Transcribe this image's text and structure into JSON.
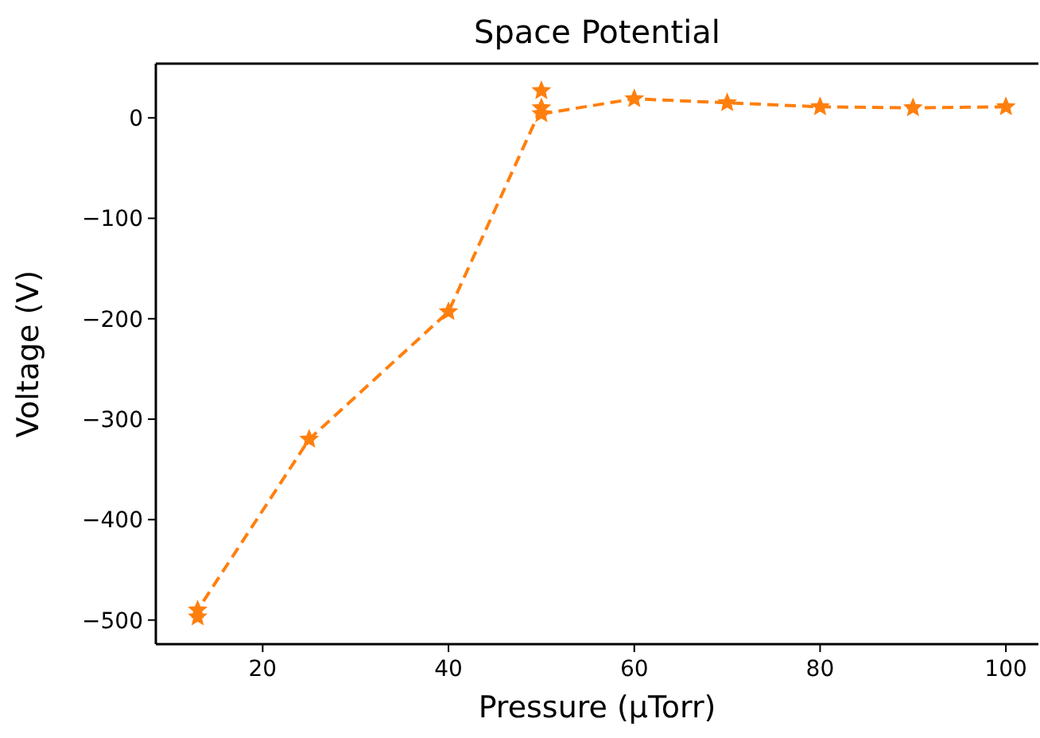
{
  "chart_data": {
    "type": "line",
    "title": "Space Potential",
    "xlabel": "Pressure (μTorr)",
    "ylabel": "Voltage (V)",
    "xlim": [
      8.5,
      103.5
    ],
    "ylim": [
      -524,
      54
    ],
    "xticks": [
      20,
      40,
      60,
      80,
      100
    ],
    "yticks": [
      {
        "value": -500,
        "label": "−500"
      },
      {
        "value": -400,
        "label": "−400"
      },
      {
        "value": -300,
        "label": "−300"
      },
      {
        "value": -200,
        "label": "−200"
      },
      {
        "value": -100,
        "label": "−100"
      },
      0
    ],
    "marker": "star",
    "line_style": "dashed",
    "grid": false,
    "series": [
      {
        "color": "#ff7f0e",
        "x": [
          13,
          13,
          25,
          40,
          50,
          50,
          60,
          70,
          80,
          90,
          100
        ],
        "values": [
          -497,
          -490,
          -320,
          -193,
          10,
          4,
          19,
          15,
          11,
          10,
          11
        ]
      },
      {
        "type": "scatter",
        "color": "#ff7f0e",
        "x": [
          50
        ],
        "values": [
          27
        ]
      }
    ]
  }
}
